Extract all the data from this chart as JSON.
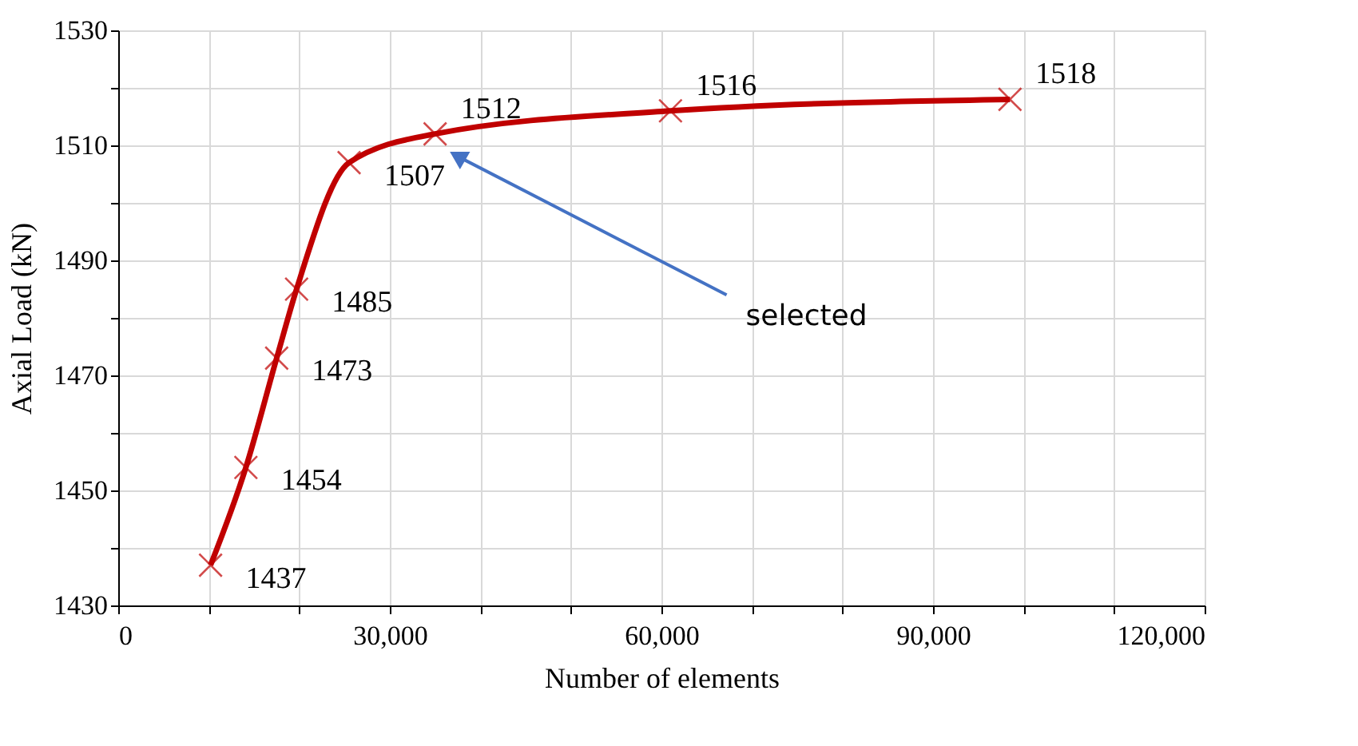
{
  "chart_data": {
    "type": "line",
    "xlabel": "Number of elements",
    "ylabel": "Axial Load (kN)",
    "x": [
      10200,
      14100,
      17500,
      19700,
      25500,
      35000,
      61000,
      98500
    ],
    "series": [
      {
        "color": "#c00000",
        "values": [
          1437,
          1454,
          1473,
          1485,
          1507,
          1512,
          1516,
          1518
        ]
      }
    ],
    "xlim": [
      0,
      120000
    ],
    "xticks": [
      0,
      {
        "value": 10000,
        "label": null
      },
      {
        "value": 20000,
        "label": null
      },
      {
        "value": 30000,
        "label": "30,000"
      },
      {
        "value": 40000,
        "label": null
      },
      {
        "value": 50000,
        "label": null
      },
      {
        "value": 60000,
        "label": "60,000"
      },
      {
        "value": 70000,
        "label": null
      },
      {
        "value": 80000,
        "label": null
      },
      {
        "value": 90000,
        "label": "90,000"
      },
      {
        "value": 100000,
        "label": null
      },
      {
        "value": 110000,
        "label": null
      },
      {
        "value": 120000,
        "label": "120,000"
      }
    ],
    "ylim": [
      1430,
      1530
    ],
    "yticks": [
      1430,
      {
        "value": 1440,
        "label": null
      },
      1450,
      {
        "value": 1460,
        "label": null
      },
      1470,
      {
        "value": 1480,
        "label": null
      },
      1490,
      {
        "value": 1500,
        "label": null
      },
      1510,
      {
        "value": 1520,
        "label": null
      },
      1530
    ],
    "grid": true,
    "marker": "cross",
    "line_style": "solid",
    "data_labels": true,
    "annotations": [
      "selected"
    ]
  }
}
